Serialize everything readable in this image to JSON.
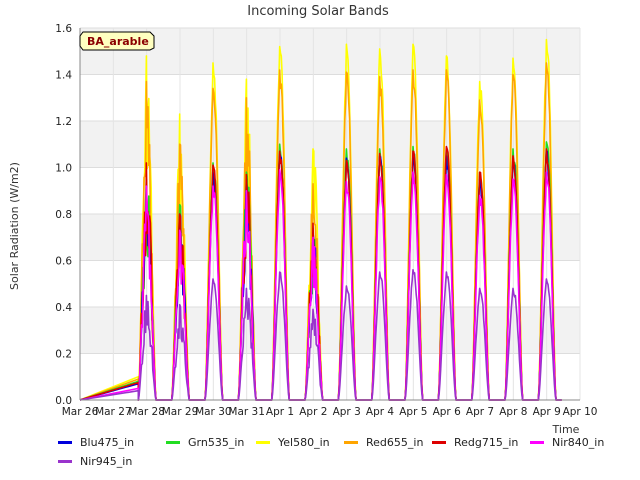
{
  "chart_data": {
    "type": "line",
    "title": "Incoming Solar Bands",
    "xlabel": "Time",
    "ylabel": "Solar Radiation (W/m2)",
    "station_label": "BA_arable",
    "ylim": [
      0,
      1.6
    ],
    "yticks": [
      "0.0",
      "0.2",
      "0.4",
      "0.6",
      "0.8",
      "1.0",
      "1.2",
      "1.4",
      "1.6"
    ],
    "xticks": [
      "Mar 26",
      "Mar 27",
      "Mar 28",
      "Mar 29",
      "Mar 30",
      "Mar 31",
      "Apr 1",
      "Apr 2",
      "Apr 3",
      "Apr 4",
      "Apr 5",
      "Apr 6",
      "Apr 7",
      "Apr 8",
      "Apr 9",
      "Apr 10"
    ],
    "grid": true,
    "day_peaks": {
      "Mar 28": {
        "Yel580_in": 1.48,
        "Red655_in": 1.37,
        "Grn535_in": 0.95,
        "Blu475_in": 0.92,
        "Redg715_in": 1.02,
        "Nir840_in": 0.92,
        "Nir945_in": 0.45
      },
      "Mar 29": {
        "Yel580_in": 1.23,
        "Red655_in": 1.1,
        "Grn535_in": 0.84,
        "Blu475_in": 0.8,
        "Redg715_in": 0.8,
        "Nir840_in": 0.73,
        "Nir945_in": 0.41
      },
      "Mar 30": {
        "Yel580_in": 1.45,
        "Red655_in": 1.34,
        "Grn535_in": 1.02,
        "Blu475_in": 0.98,
        "Redg715_in": 1.01,
        "Nir840_in": 0.92,
        "Nir945_in": 0.52
      },
      "Mar 31": {
        "Yel580_in": 1.38,
        "Red655_in": 1.3,
        "Grn535_in": 0.98,
        "Blu475_in": 0.95,
        "Redg715_in": 0.97,
        "Nir840_in": 0.9,
        "Nir945_in": 0.48
      },
      "Apr 1": {
        "Yel580_in": 1.52,
        "Red655_in": 1.42,
        "Grn535_in": 1.1,
        "Blu475_in": 1.06,
        "Redg715_in": 1.07,
        "Nir840_in": 0.99,
        "Nir945_in": 0.55
      },
      "Apr 2": {
        "Yel580_in": 1.08,
        "Red655_in": 0.93,
        "Grn535_in": 0.74,
        "Blu475_in": 0.72,
        "Redg715_in": 0.76,
        "Nir840_in": 0.7,
        "Nir945_in": 0.39
      },
      "Apr 3": {
        "Yel580_in": 1.53,
        "Red655_in": 1.41,
        "Grn535_in": 1.08,
        "Blu475_in": 1.04,
        "Redg715_in": 1.03,
        "Nir840_in": 0.94,
        "Nir945_in": 0.49
      },
      "Apr 4": {
        "Yel580_in": 1.51,
        "Red655_in": 1.39,
        "Grn535_in": 1.08,
        "Blu475_in": 1.05,
        "Redg715_in": 1.06,
        "Nir840_in": 0.96,
        "Nir945_in": 0.55
      },
      "Apr 5": {
        "Yel580_in": 1.53,
        "Red655_in": 1.42,
        "Grn535_in": 1.09,
        "Blu475_in": 1.06,
        "Redg715_in": 1.07,
        "Nir840_in": 0.98,
        "Nir945_in": 0.56
      },
      "Apr 6": {
        "Yel580_in": 1.48,
        "Red655_in": 1.42,
        "Grn535_in": 1.08,
        "Blu475_in": 1.05,
        "Redg715_in": 1.09,
        "Nir840_in": 0.97,
        "Nir945_in": 0.55
      },
      "Apr 7": {
        "Yel580_in": 1.37,
        "Red655_in": 1.29,
        "Grn535_in": 0.98,
        "Blu475_in": 0.95,
        "Redg715_in": 0.98,
        "Nir840_in": 0.88,
        "Nir945_in": 0.48
      },
      "Apr 8": {
        "Yel580_in": 1.47,
        "Red655_in": 1.4,
        "Grn535_in": 1.08,
        "Blu475_in": 1.04,
        "Redg715_in": 1.05,
        "Nir840_in": 0.95,
        "Nir945_in": 0.48
      },
      "Apr 9": {
        "Yel580_in": 1.55,
        "Red655_in": 1.45,
        "Grn535_in": 1.11,
        "Blu475_in": 1.07,
        "Redg715_in": 1.08,
        "Nir840_in": 0.98,
        "Nir945_in": 0.52
      }
    },
    "series": [
      {
        "name": "Blu475_in",
        "color": "#0000dd"
      },
      {
        "name": "Grn535_in",
        "color": "#22dd22"
      },
      {
        "name": "Yel580_in",
        "color": "#ffff00"
      },
      {
        "name": "Red655_in",
        "color": "#ffa500"
      },
      {
        "name": "Redg715_in",
        "color": "#dd0000"
      },
      {
        "name": "Nir840_in",
        "color": "#ff00ff"
      },
      {
        "name": "Nir945_in",
        "color": "#9933cc"
      }
    ],
    "legend_position": "bottom"
  }
}
